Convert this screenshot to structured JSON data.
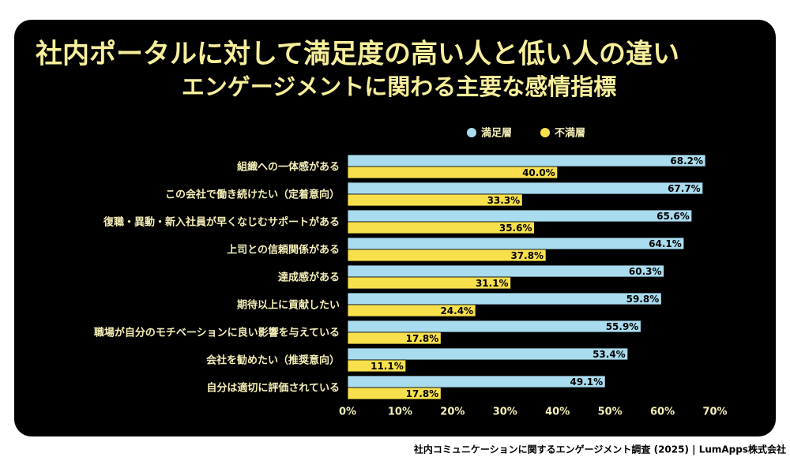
{
  "chart_data": {
    "type": "bar",
    "orientation": "horizontal",
    "title": "社内ポータルに対して満足度の高い人と低い人の違い",
    "subtitle": "エンゲージメントに関わる主要な感情指標",
    "source": "社内コミュニケーションに関するエンゲージメント調査 (2025) | LumApps株式会社",
    "legend": "top",
    "categories": [
      "組織への一体感がある",
      "この会社で働き続けたい（定着意向）",
      "復職・異動・新入社員が早くなじむサポートがある",
      "上司との信頼関係がある",
      "達成感がある",
      "期待以上に貢献したい",
      "職場が自分のモチベーションに良い影響を与えている",
      "会社を勧めたい（推奨意向）",
      "自分は適切に評価されている"
    ],
    "series": [
      {
        "name": "満足層",
        "color": "#a9dcee",
        "values": [
          68.2,
          67.7,
          65.6,
          64.1,
          60.3,
          59.8,
          55.9,
          53.4,
          49.1
        ],
        "value_labels": [
          "68.2%",
          "67.7%",
          "65.6%",
          "64.1%",
          "60.3%",
          "59.8%",
          "55.9%",
          "53.4%",
          "49.1%"
        ]
      },
      {
        "name": "不満層",
        "color": "#f7e04c",
        "values": [
          40.0,
          33.3,
          35.6,
          37.8,
          31.1,
          24.4,
          17.8,
          11.1,
          17.8
        ],
        "value_labels": [
          "40.0%",
          "33.3%",
          "35.6%",
          "37.8%",
          "31.1%",
          "24.4%",
          "17.8%",
          "11.1%",
          "17.8%"
        ]
      }
    ],
    "xlim": [
      0,
      70
    ],
    "xticks": [
      {
        "value": 0,
        "label": "0%"
      },
      {
        "value": 10,
        "label": "10%"
      },
      {
        "value": 20,
        "label": "20%"
      },
      {
        "value": 30,
        "label": "30%"
      },
      {
        "value": 40,
        "label": "40%"
      },
      {
        "value": 50,
        "label": "50%"
      },
      {
        "value": 60,
        "label": "60%"
      },
      {
        "value": 70,
        "label": "70%"
      }
    ]
  }
}
